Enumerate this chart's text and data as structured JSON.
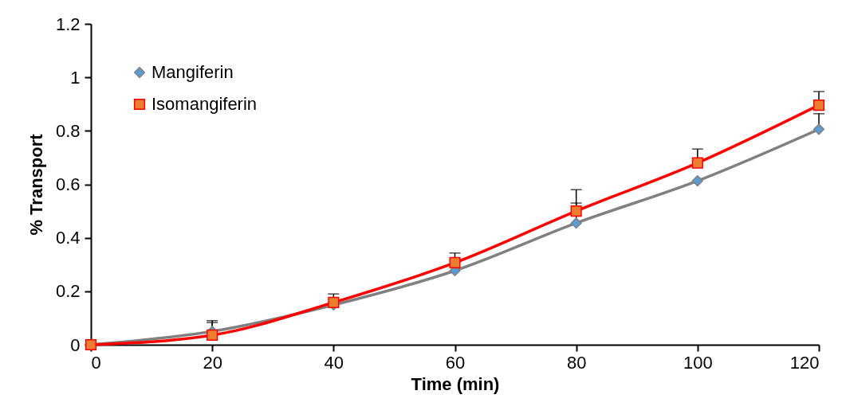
{
  "chart_data": {
    "type": "line",
    "xlabel": "Time (min)",
    "ylabel": "% Transport",
    "x": [
      0,
      20,
      40,
      60,
      80,
      100,
      120
    ],
    "series": [
      {
        "name": "Mangiferin",
        "color": "#808080",
        "marker": "diamond",
        "colors": [
          "#5b9bd5",
          "#5b9bd5",
          "#5b9bd5",
          "#5b9bd5",
          "#5b9bd5",
          "#5b9bd5",
          "#5b9bd5"
        ],
        "values": [
          0,
          0.05,
          0.149,
          0.277,
          0.455,
          0.613,
          0.806
        ],
        "errors": [
          null,
          [
            0.05,
            0.09
          ],
          null,
          null,
          [
            0.455,
            0.53
          ],
          null,
          [
            0.806,
            0.864
          ]
        ]
      },
      {
        "name": "Isomangiferin",
        "color": "#ff0000",
        "marker": "square",
        "colors": [
          "#ed7d31",
          "#ed7d31",
          "#ed7d31",
          "#ed7d31",
          "#ed7d31",
          "#ed7d31",
          "#ed7d31"
        ],
        "values": [
          0,
          0.036,
          0.158,
          0.307,
          0.5,
          0.68,
          0.896
        ],
        "errors": [
          null,
          [
            0.036,
            0.083
          ],
          [
            0.158,
            0.19
          ],
          [
            0.307,
            0.343
          ],
          [
            0.5,
            0.58
          ],
          [
            0.68,
            0.732
          ],
          [
            0.896,
            0.947
          ]
        ]
      }
    ],
    "xlim": [
      0,
      120
    ],
    "xticks": [
      0,
      20,
      40,
      60,
      80,
      100,
      120
    ],
    "ylim": [
      0,
      1.2
    ],
    "yticks": [
      0,
      0.2,
      0.4,
      0.6,
      0.8,
      1,
      1.2
    ],
    "grid": false,
    "legend": "top left"
  }
}
